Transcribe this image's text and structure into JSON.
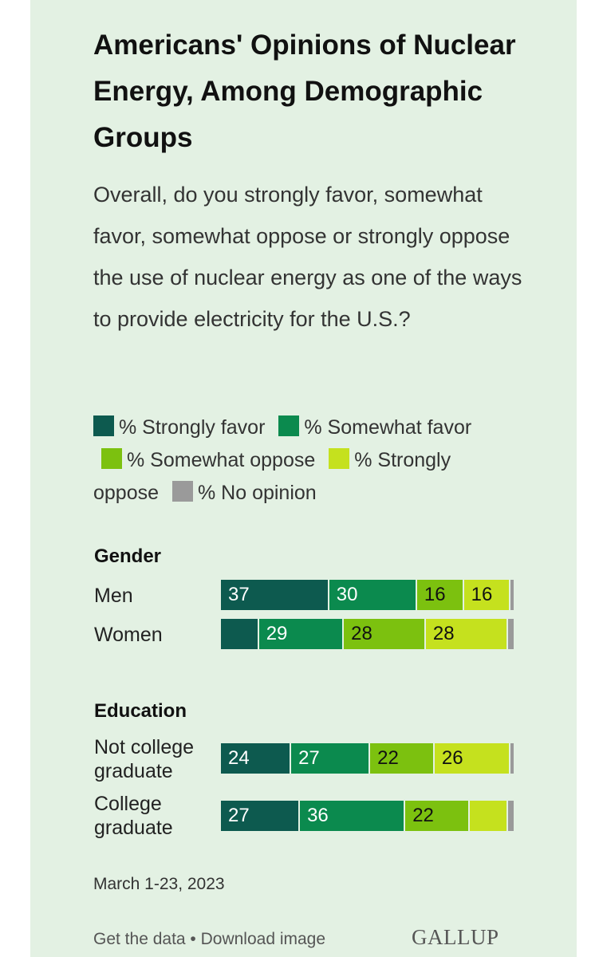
{
  "header": {
    "title": "Americans' Opinions of Nuclear Energy, Among Demographic Groups",
    "subtitle": "Overall, do you strongly favor, somewhat favor, somewhat oppose or strongly oppose the use of nuclear energy as one of the ways to provide electricity for the U.S.?"
  },
  "footer": {
    "date": "March 1-23, 2023",
    "links": "Get the data • Download image",
    "brand": "GALLUP"
  },
  "colors": {
    "background": "#e3f1e3",
    "strongly_favor": "#0d5a4f",
    "somewhat_favor": "#0b8a4e",
    "somewhat_oppose": "#7cc10f",
    "strongly_oppose": "#c5e11e",
    "no_opinion": "#9a9a9a"
  },
  "chart_data": {
    "type": "bar",
    "orientation": "horizontal",
    "stacked": true,
    "series_names": [
      "% Strongly favor",
      "% Somewhat favor",
      "% Somewhat oppose",
      "% Strongly oppose",
      "% No opinion"
    ],
    "legend": {
      "items": [
        {
          "label": "% Strongly favor",
          "color": "#0d5a4f"
        },
        {
          "label": "% Somewhat favor",
          "color": "#0b8a4e"
        },
        {
          "label": "% Somewhat oppose",
          "color": "#7cc10f"
        },
        {
          "label": "% Strongly oppose",
          "color": "#c5e11e"
        },
        {
          "label": "% No opinion",
          "color": "#9a9a9a"
        }
      ]
    },
    "groups": [
      {
        "name": "Gender",
        "rows": [
          {
            "label": "Men",
            "values": [
              37,
              30,
              16,
              16,
              1
            ],
            "shown": [
              true,
              true,
              true,
              true,
              false
            ]
          },
          {
            "label": "Women",
            "values": [
              13,
              29,
              28,
              28,
              2
            ],
            "shown": [
              false,
              true,
              true,
              true,
              false
            ]
          }
        ]
      },
      {
        "name": "Education",
        "rows": [
          {
            "label": "Not college graduate",
            "values": [
              24,
              27,
              22,
              26,
              1
            ],
            "shown": [
              true,
              true,
              true,
              true,
              false
            ]
          },
          {
            "label": "College graduate",
            "values": [
              27,
              36,
              22,
              13,
              2
            ],
            "shown": [
              true,
              true,
              true,
              false,
              false
            ]
          }
        ]
      }
    ]
  }
}
